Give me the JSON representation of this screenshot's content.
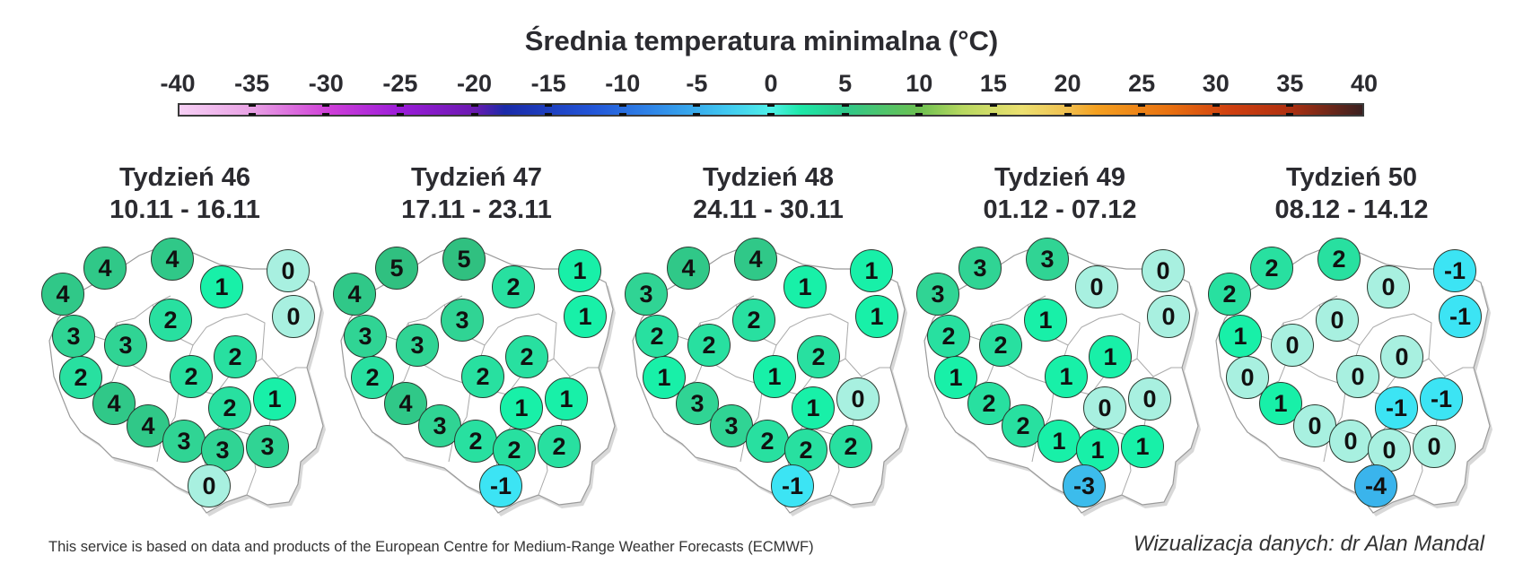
{
  "title": "Średnia temperatura minimalna (°C)",
  "colorbar": {
    "ticks": [
      "-40",
      "-35",
      "-30",
      "-25",
      "-20",
      "-15",
      "-10",
      "-5",
      "0",
      "5",
      "10",
      "15",
      "20",
      "25",
      "30",
      "35",
      "40"
    ],
    "range": [
      -40,
      40
    ],
    "gradient_stops": [
      {
        "v": -40,
        "c": "#f7d0f5"
      },
      {
        "v": -35,
        "c": "#e8a0e4"
      },
      {
        "v": -30,
        "c": "#d040d8"
      },
      {
        "v": -25,
        "c": "#9a1cd8"
      },
      {
        "v": -20,
        "c": "#6a1ab0"
      },
      {
        "v": -18,
        "c": "#1a2aa8"
      },
      {
        "v": -12,
        "c": "#2356d8"
      },
      {
        "v": -8,
        "c": "#2f86e8"
      },
      {
        "v": -3,
        "c": "#40c8f0"
      },
      {
        "v": 0,
        "c": "#4ff0e8"
      },
      {
        "v": 2,
        "c": "#1de8a8"
      },
      {
        "v": 5,
        "c": "#2ec88a"
      },
      {
        "v": 10,
        "c": "#6cc050"
      },
      {
        "v": 13,
        "c": "#b8d860"
      },
      {
        "v": 17,
        "c": "#ece070"
      },
      {
        "v": 20,
        "c": "#f0c050"
      },
      {
        "v": 22,
        "c": "#f4a020"
      },
      {
        "v": 27,
        "c": "#e87010"
      },
      {
        "v": 31,
        "c": "#d04010"
      },
      {
        "v": 35,
        "c": "#b03010"
      },
      {
        "v": 40,
        "c": "#3a2020"
      }
    ]
  },
  "bubble_colors": {
    "-4": "#3ab4ec",
    "-3": "#3cbcec",
    "-1": "#3ce4f4",
    "0": "#a8f0e0",
    "1": "#18f0a8",
    "2": "#28e0a0",
    "3": "#30d494",
    "4": "#30c888",
    "5": "#30c080"
  },
  "positions": [
    [
      87,
      39
    ],
    [
      40,
      68
    ],
    [
      162,
      29
    ],
    [
      217,
      60
    ],
    [
      291,
      42
    ],
    [
      297,
      93
    ],
    [
      160,
      97
    ],
    [
      52,
      115
    ],
    [
      110,
      125
    ],
    [
      232,
      138
    ],
    [
      183,
      160
    ],
    [
      60,
      161
    ],
    [
      276,
      185
    ],
    [
      226,
      195
    ],
    [
      97,
      190
    ],
    [
      135,
      215
    ],
    [
      175,
      232
    ],
    [
      218,
      242
    ],
    [
      268,
      238
    ],
    [
      203,
      282
    ]
  ],
  "chart_data": {
    "type": "map",
    "title": "Średnia temperatura minimalna (°C)",
    "colorbar_range": [
      -40,
      40
    ],
    "maps": [
      {
        "week": "Tydzień 46",
        "dates": "10.11 - 16.11",
        "values": [
          4,
          4,
          4,
          1,
          0,
          0,
          2,
          3,
          3,
          2,
          2,
          2,
          1,
          2,
          4,
          4,
          3,
          3,
          3,
          0
        ]
      },
      {
        "week": "Tydzień 47",
        "dates": "17.11 - 23.11",
        "values": [
          5,
          4,
          5,
          2,
          1,
          1,
          3,
          3,
          3,
          2,
          2,
          2,
          1,
          1,
          4,
          3,
          2,
          2,
          2,
          -1
        ]
      },
      {
        "week": "Tydzień 48",
        "dates": "24.11 - 30.11",
        "values": [
          4,
          3,
          4,
          1,
          1,
          1,
          2,
          2,
          2,
          2,
          1,
          1,
          0,
          1,
          3,
          3,
          2,
          2,
          2,
          -1
        ]
      },
      {
        "week": "Tydzień 49",
        "dates": "01.12 - 07.12",
        "values": [
          3,
          3,
          3,
          0,
          0,
          0,
          1,
          2,
          2,
          1,
          1,
          1,
          0,
          0,
          2,
          2,
          1,
          1,
          1,
          -3
        ]
      },
      {
        "week": "Tydzień 50",
        "dates": "08.12 - 14.12",
        "values": [
          2,
          2,
          2,
          0,
          -1,
          -1,
          0,
          1,
          0,
          0,
          0,
          0,
          -1,
          -1,
          1,
          0,
          0,
          0,
          0,
          -4
        ]
      }
    ]
  },
  "maps": [
    {
      "week": "Tydzień 46",
      "dates": "10.11 - 16.11"
    },
    {
      "week": "Tydzień 47",
      "dates": "17.11 - 23.11"
    },
    {
      "week": "Tydzień 48",
      "dates": "24.11 - 30.11"
    },
    {
      "week": "Tydzień 49",
      "dates": "01.12 - 07.12"
    },
    {
      "week": "Tydzień 50",
      "dates": "08.12 - 14.12"
    }
  ],
  "footer": {
    "attribution": "This service is based on data and products of the European Centre for Medium-Range Weather Forecasts (ECMWF)",
    "credit": "Wizualizacja danych: dr Alan Mandal"
  }
}
